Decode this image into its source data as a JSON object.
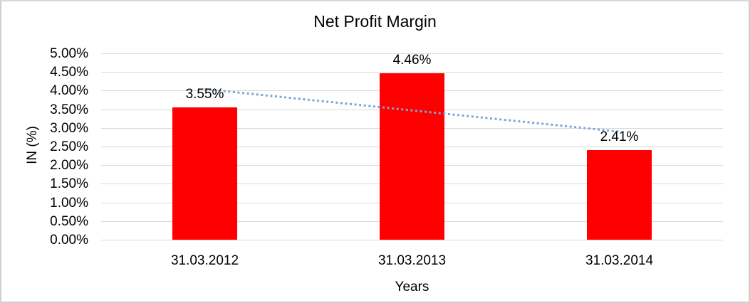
{
  "chart_data": {
    "type": "bar",
    "title": "Net Profit Margin",
    "xlabel": "Years",
    "ylabel": "IN (%)",
    "categories": [
      "31.03.2012",
      "31.03.2013",
      "31.03.2014"
    ],
    "series": [
      {
        "name": "Net Profit Margin",
        "values": [
          3.55,
          4.46,
          2.41
        ]
      }
    ],
    "data_labels": [
      "3.55%",
      "4.46%",
      "2.41%"
    ],
    "ylim": [
      0,
      5
    ],
    "ytick_step": 0.5,
    "yticks": [
      "0.00%",
      "0.50%",
      "1.00%",
      "1.50%",
      "2.00%",
      "2.50%",
      "3.00%",
      "3.50%",
      "4.00%",
      "4.50%",
      "5.00%"
    ],
    "grid": "horizontal",
    "legend": "none",
    "bar_color": "#ff0000",
    "trendline": {
      "shape": "linear",
      "style": "dotted",
      "color": "#7CA5D8",
      "start_value": 4.04,
      "end_value": 2.9
    }
  }
}
